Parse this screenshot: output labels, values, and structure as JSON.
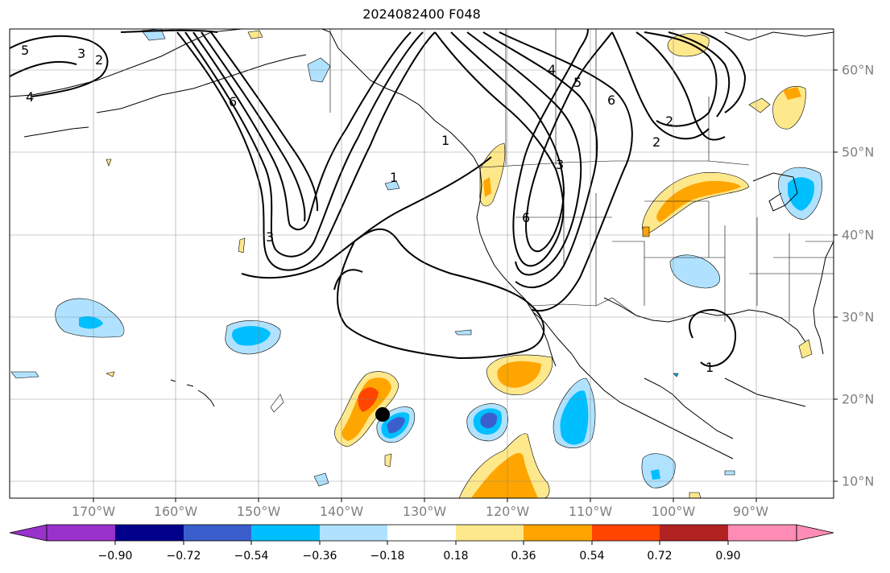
{
  "title": "2024082400 F048",
  "lon_labels": [
    "170°W",
    "160°W",
    "150°W",
    "140°W",
    "130°W",
    "120°W",
    "110°W",
    "100°W",
    "90°W"
  ],
  "lat_labels": [
    "60°N",
    "50°N",
    "40°N",
    "30°N",
    "20°N",
    "10°N"
  ],
  "contour_labels": [
    "5",
    "3",
    "2",
    "4",
    "6",
    "3",
    "1",
    "4",
    "5",
    "6",
    "2",
    "2",
    "1",
    "1",
    "6",
    "3"
  ],
  "colorbar": {
    "tick_labels": [
      "−0.90",
      "−0.72",
      "−0.54",
      "−0.36",
      "−0.18",
      "0.18",
      "0.36",
      "0.54",
      "0.72",
      "0.90"
    ],
    "colors": [
      "#9932cc",
      "#00008b",
      "#3a5fcd",
      "#00bfff",
      "#b0e2ff",
      "#ffffff",
      "#fee88c",
      "#ffa500",
      "#ff4500",
      "#b22222",
      "#ff8cb4"
    ]
  },
  "marker": "storm-center-dot"
}
